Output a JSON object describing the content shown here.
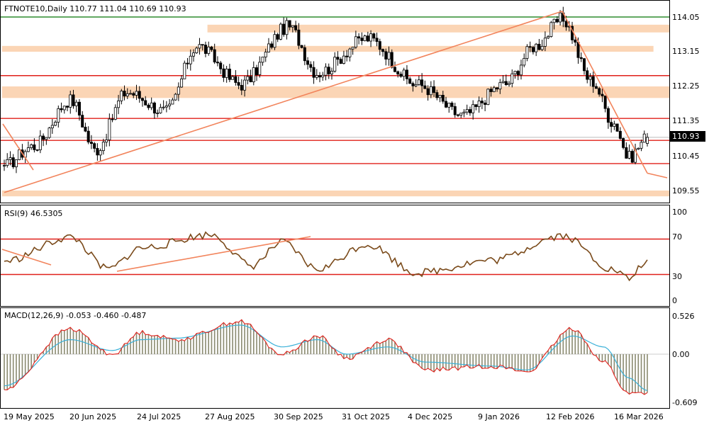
{
  "colors": {
    "zone": "#fbd5b5",
    "level": "#e0201a",
    "trend": "#f2845c",
    "top_line": "#2e8b2e",
    "candle": "#000000",
    "rsi": "#7a4a1a",
    "macd_main": "#e0201a",
    "macd_signal": "#39b0d8",
    "histogram": "#8a8a70",
    "price_tag": "#000000"
  },
  "main_panel": {
    "label": "FTNOTE10,Daily  110.77 111.04 110.69 110.93",
    "price_tag": "110.93",
    "y_ticks": [
      "114.05",
      "113.15",
      "112.25",
      "111.35",
      "110.45",
      "109.55"
    ]
  },
  "rsi_panel": {
    "label": "RSI(9) 46.5305",
    "y_ticks": [
      "100",
      "70",
      "30",
      "0"
    ]
  },
  "macd_panel": {
    "label": "MACD(12,26,9) -0.053 -0.460 -0.487",
    "y_ticks": [
      "0.526",
      "0.00",
      "-0.609"
    ]
  },
  "x_axis": {
    "labels": [
      "19 May 2025",
      "20 Jun 2025",
      "24 Jul 2025",
      "27 Aug 2025",
      "30 Sep 2025",
      "31 Oct 2025",
      "4 Dec 2025",
      "9 Jan 2026",
      "12 Feb 2026",
      "16 Mar 2026"
    ]
  },
  "chart_data": [
    {
      "type": "candlestick",
      "title": "FTNOTE10,Daily",
      "ohlc_last": {
        "open": 110.77,
        "high": 111.04,
        "low": 110.69,
        "close": 110.93
      },
      "ylim": [
        109.3,
        114.3
      ],
      "close_anchors": [
        {
          "date": "19 May 2025",
          "value": 110.2
        },
        {
          "date": "2 Jun 2025",
          "value": 110.7
        },
        {
          "date": "20 Jun 2025",
          "value": 111.9
        },
        {
          "date": "2 Jul 2025",
          "value": 110.6
        },
        {
          "date": "17 Jul 2025",
          "value": 112.1
        },
        {
          "date": "5 Aug 2025",
          "value": 111.6
        },
        {
          "date": "20 Aug 2025",
          "value": 113.3
        },
        {
          "date": "10 Sep 2025",
          "value": 112.3
        },
        {
          "date": "3 Oct 2025",
          "value": 113.8
        },
        {
          "date": "17 Oct 2025",
          "value": 112.6
        },
        {
          "date": "10 Nov 2025",
          "value": 113.5
        },
        {
          "date": "4 Dec 2025",
          "value": 112.3
        },
        {
          "date": "26 Dec 2025",
          "value": 111.5
        },
        {
          "date": "15 Jan 2026",
          "value": 112.3
        },
        {
          "date": "30 Jan 2026",
          "value": 113.3
        },
        {
          "date": "12 Feb 2026",
          "value": 114.0
        },
        {
          "date": "26 Feb 2026",
          "value": 112.4
        },
        {
          "date": "9 Mar 2026",
          "value": 111.3
        },
        {
          "date": "16 Mar 2026",
          "value": 110.4
        },
        {
          "date": "25 Mar 2026",
          "value": 110.93
        }
      ],
      "horizontal_levels": [
        114.05,
        112.53,
        111.42,
        110.85,
        110.25
      ],
      "resistance_zones": [
        [
          113.65,
          113.85
        ],
        [
          113.15,
          113.3
        ],
        [
          111.95,
          112.25
        ],
        [
          109.4,
          109.55
        ]
      ],
      "trendlines": [
        {
          "from": {
            "date": "19 May 2025",
            "value": 109.5
          },
          "to": {
            "date": "12 Feb 2026",
            "value": 114.2
          }
        },
        {
          "from": {
            "date": "12 Feb 2026",
            "value": 114.2
          },
          "to": {
            "date": "25 Mar 2026",
            "value": 110.0
          }
        }
      ]
    },
    {
      "type": "line",
      "title": "RSI(9) 46.5305",
      "ylim": [
        0,
        100
      ],
      "levels": [
        70,
        30
      ],
      "series": [
        {
          "name": "RSI(9)",
          "anchors": [
            {
              "date": "19 May 2025",
              "value": 45
            },
            {
              "date": "20 Jun 2025",
              "value": 72
            },
            {
              "date": "8 Jul 2025",
              "value": 36
            },
            {
              "date": "24 Jul 2025",
              "value": 60
            },
            {
              "date": "27 Aug 2025",
              "value": 75
            },
            {
              "date": "15 Sep 2025",
              "value": 40
            },
            {
              "date": "30 Sep 2025",
              "value": 66
            },
            {
              "date": "17 Oct 2025",
              "value": 36
            },
            {
              "date": "10 Nov 2025",
              "value": 64
            },
            {
              "date": "4 Dec 2025",
              "value": 32
            },
            {
              "date": "9 Jan 2026",
              "value": 46
            },
            {
              "date": "12 Feb 2026",
              "value": 74
            },
            {
              "date": "9 Mar 2026",
              "value": 35
            },
            {
              "date": "16 Mar 2026",
              "value": 25
            },
            {
              "date": "25 Mar 2026",
              "value": 46.53
            }
          ]
        }
      ]
    },
    {
      "type": "line",
      "title": "MACD(12,26,9) -0.053 -0.460 -0.487",
      "ylim": [
        -0.609,
        0.526
      ],
      "series": [
        {
          "name": "MACD",
          "anchors": [
            {
              "date": "19 May 2025",
              "value": -0.45
            },
            {
              "date": "20 Jun 2025",
              "value": 0.35
            },
            {
              "date": "10 Jul 2025",
              "value": 0.0
            },
            {
              "date": "24 Jul 2025",
              "value": 0.3
            },
            {
              "date": "10 Aug 2025",
              "value": 0.2
            },
            {
              "date": "10 Sep 2025",
              "value": 0.45
            },
            {
              "date": "30 Sep 2025",
              "value": 0.0
            },
            {
              "date": "17 Oct 2025",
              "value": 0.25
            },
            {
              "date": "31 Oct 2025",
              "value": -0.05
            },
            {
              "date": "20 Nov 2025",
              "value": 0.2
            },
            {
              "date": "8 Dec 2025",
              "value": -0.2
            },
            {
              "date": "9 Jan 2026",
              "value": -0.15
            },
            {
              "date": "26 Jan 2026",
              "value": -0.22
            },
            {
              "date": "17 Feb 2026",
              "value": 0.35
            },
            {
              "date": "4 Mar 2026",
              "value": -0.1
            },
            {
              "date": "16 Mar 2026",
              "value": -0.5
            },
            {
              "date": "25 Mar 2026",
              "value": -0.487
            }
          ]
        },
        {
          "name": "Signal",
          "anchors": [
            {
              "date": "19 May 2025",
              "value": -0.4
            },
            {
              "date": "20 Jun 2025",
              "value": 0.2
            },
            {
              "date": "10 Jul 2025",
              "value": 0.05
            },
            {
              "date": "24 Jul 2025",
              "value": 0.2
            },
            {
              "date": "10 Aug 2025",
              "value": 0.22
            },
            {
              "date": "10 Sep 2025",
              "value": 0.4
            },
            {
              "date": "30 Sep 2025",
              "value": 0.1
            },
            {
              "date": "17 Oct 2025",
              "value": 0.2
            },
            {
              "date": "31 Oct 2025",
              "value": 0.0
            },
            {
              "date": "20 Nov 2025",
              "value": 0.1
            },
            {
              "date": "8 Dec 2025",
              "value": -0.1
            },
            {
              "date": "9 Jan 2026",
              "value": -0.15
            },
            {
              "date": "26 Jan 2026",
              "value": -0.2
            },
            {
              "date": "17 Feb 2026",
              "value": 0.25
            },
            {
              "date": "4 Mar 2026",
              "value": 0.1
            },
            {
              "date": "16 Mar 2026",
              "value": -0.3
            },
            {
              "date": "25 Mar 2026",
              "value": -0.46
            }
          ]
        }
      ]
    }
  ]
}
